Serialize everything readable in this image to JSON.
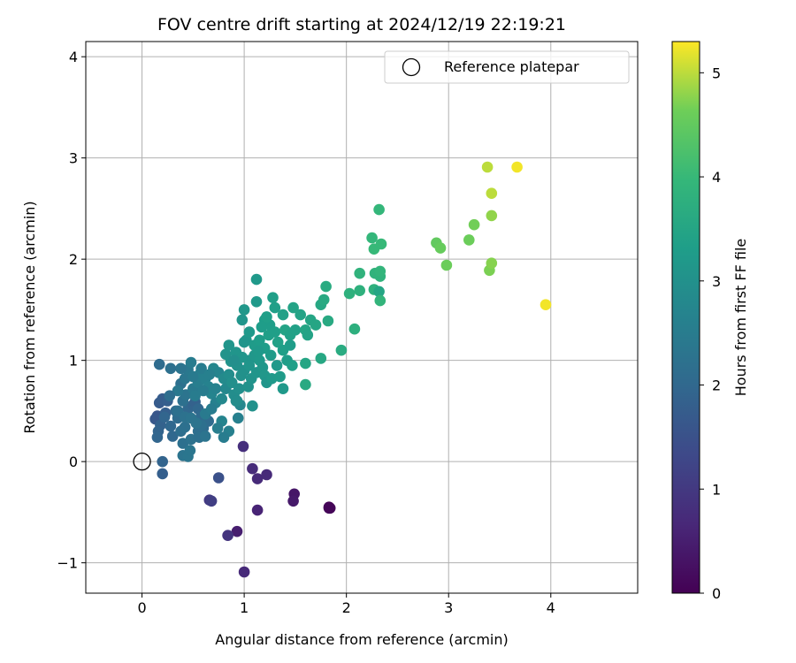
{
  "chart_data": {
    "type": "scatter",
    "title": "FOV centre drift starting at 2024/12/19 22:19:21",
    "xlabel": "Angular distance from reference (arcmin)",
    "ylabel": "Rotation from reference (arcmin)",
    "xlim": [
      -0.55,
      4.85
    ],
    "ylim": [
      -1.3,
      4.15
    ],
    "xticks": [
      "0",
      "1",
      "2",
      "3",
      "4"
    ],
    "yticks": [
      "−1",
      "0",
      "1",
      "2",
      "3",
      "4"
    ],
    "grid": true,
    "legend": {
      "position": "top-right",
      "entries": [
        "Reference platepar"
      ]
    },
    "colorbar": {
      "label": "Hours from first FF file",
      "range": [
        0,
        5.3
      ],
      "ticks": [
        "0",
        "1",
        "2",
        "3",
        "4",
        "5"
      ],
      "colormap": "viridis"
    },
    "reference_point": {
      "x": 0,
      "y": 0
    },
    "series": [
      {
        "columns": [
          "x",
          "y",
          "hours"
        ],
        "points": [
          [
            1.83,
            -0.45,
            0.02
          ],
          [
            1.84,
            -0.46,
            0.05
          ],
          [
            1.83,
            -0.46,
            0.08
          ],
          [
            1.49,
            -0.32,
            0.35
          ],
          [
            1.48,
            -0.39,
            0.4
          ],
          [
            0.93,
            -0.69,
            0.5
          ],
          [
            1.13,
            -0.48,
            0.6
          ],
          [
            1.0,
            -1.09,
            0.7
          ],
          [
            1.13,
            -0.17,
            0.7
          ],
          [
            1.22,
            -0.13,
            0.7
          ],
          [
            1.08,
            -0.07,
            0.75
          ],
          [
            0.99,
            0.15,
            0.8
          ],
          [
            0.84,
            -0.73,
            0.9
          ],
          [
            0.66,
            -0.38,
            1.0
          ],
          [
            0.68,
            -0.39,
            1.1
          ],
          [
            0.75,
            -0.16,
            1.5
          ],
          [
            0.2,
            -0.12,
            1.8
          ],
          [
            0.2,
            0.0,
            1.9
          ],
          [
            0.15,
            0.45,
            1.6
          ],
          [
            0.13,
            0.42,
            1.65
          ],
          [
            0.17,
            0.58,
            1.7
          ],
          [
            0.2,
            0.62,
            1.75
          ],
          [
            0.23,
            0.48,
            1.8
          ],
          [
            0.18,
            0.36,
            1.85
          ],
          [
            0.16,
            0.3,
            1.9
          ],
          [
            0.15,
            0.24,
            1.95
          ],
          [
            0.28,
            0.35,
            2.0
          ],
          [
            0.3,
            0.25,
            2.0
          ],
          [
            0.25,
            0.6,
            1.8
          ],
          [
            0.33,
            0.5,
            2.05
          ],
          [
            0.35,
            0.43,
            2.1
          ],
          [
            0.38,
            0.3,
            2.15
          ],
          [
            0.42,
            0.34,
            2.2
          ],
          [
            0.4,
            0.18,
            2.2
          ],
          [
            0.48,
            0.22,
            2.25
          ],
          [
            0.4,
            0.06,
            2.3
          ],
          [
            0.45,
            0.05,
            2.35
          ],
          [
            0.47,
            0.11,
            2.35
          ],
          [
            0.45,
            0.52,
            2.0
          ],
          [
            0.5,
            0.56,
            1.9
          ],
          [
            0.52,
            0.59,
            1.85
          ],
          [
            0.55,
            0.52,
            2.0
          ],
          [
            0.58,
            0.45,
            2.05
          ],
          [
            0.6,
            0.33,
            2.1
          ],
          [
            0.65,
            0.4,
            2.1
          ],
          [
            0.55,
            0.3,
            2.15
          ],
          [
            0.56,
            0.24,
            2.2
          ],
          [
            0.62,
            0.25,
            2.3
          ],
          [
            0.58,
            0.36,
            2.2
          ],
          [
            0.4,
            0.6,
            2.2
          ],
          [
            0.43,
            0.66,
            2.3
          ],
          [
            0.38,
            0.77,
            2.2
          ],
          [
            0.42,
            0.82,
            2.35
          ],
          [
            0.45,
            0.91,
            2.4
          ],
          [
            0.48,
            0.98,
            2.5
          ],
          [
            0.38,
            0.92,
            2.3
          ],
          [
            0.28,
            0.92,
            2.2
          ],
          [
            0.17,
            0.96,
            2.1
          ],
          [
            0.35,
            0.7,
            2.4
          ],
          [
            0.5,
            0.72,
            2.45
          ],
          [
            0.52,
            0.65,
            2.5
          ],
          [
            0.55,
            0.78,
            2.55
          ],
          [
            0.57,
            0.87,
            2.6
          ],
          [
            0.62,
            0.82,
            2.6
          ],
          [
            0.65,
            0.74,
            2.65
          ],
          [
            0.68,
            0.67,
            2.7
          ],
          [
            0.7,
            0.92,
            2.75
          ],
          [
            0.75,
            0.88,
            2.7
          ],
          [
            0.72,
            0.58,
            2.6
          ],
          [
            0.78,
            0.62,
            2.8
          ],
          [
            0.82,
            0.72,
            2.8
          ],
          [
            0.8,
            0.82,
            2.85
          ],
          [
            0.85,
            0.86,
            2.9
          ],
          [
            0.88,
            0.78,
            2.95
          ],
          [
            0.9,
            0.66,
            2.9
          ],
          [
            0.92,
            0.6,
            2.9
          ],
          [
            0.95,
            0.72,
            2.95
          ],
          [
            0.97,
            0.85,
            3.0
          ],
          [
            1.0,
            0.9,
            3.0
          ],
          [
            0.93,
            0.95,
            3.0
          ],
          [
            0.87,
            0.99,
            3.05
          ],
          [
            0.82,
            1.06,
            3.05
          ],
          [
            0.85,
            1.15,
            3.1
          ],
          [
            0.92,
            1.08,
            3.1
          ],
          [
            0.96,
            0.56,
            2.75
          ],
          [
            0.78,
            0.4,
            2.7
          ],
          [
            0.85,
            0.3,
            2.6
          ],
          [
            0.8,
            0.24,
            2.5
          ],
          [
            0.74,
            0.33,
            2.55
          ],
          [
            0.93,
            0.6,
            2.9
          ],
          [
            0.94,
            0.43,
            2.6
          ],
          [
            1.04,
            0.74,
            3.0
          ],
          [
            1.07,
            0.82,
            3.05
          ],
          [
            1.12,
            0.88,
            3.1
          ],
          [
            1.05,
            1.0,
            3.1
          ],
          [
            1.1,
            1.05,
            3.15
          ],
          [
            1.15,
            1.0,
            3.2
          ],
          [
            1.18,
            0.93,
            3.15
          ],
          [
            1.2,
            0.85,
            3.15
          ],
          [
            1.22,
            0.78,
            3.1
          ],
          [
            1.27,
            0.82,
            3.2
          ],
          [
            1.32,
            0.95,
            3.2
          ],
          [
            1.35,
            0.84,
            3.25
          ],
          [
            1.38,
            0.72,
            3.2
          ],
          [
            1.08,
            0.55,
            3.0
          ],
          [
            1.02,
            1.2,
            3.15
          ],
          [
            1.05,
            1.28,
            3.2
          ],
          [
            1.1,
            1.15,
            3.25
          ],
          [
            1.15,
            1.2,
            3.3
          ],
          [
            1.2,
            1.12,
            3.3
          ],
          [
            1.24,
            1.25,
            3.35
          ],
          [
            1.25,
            1.35,
            3.3
          ],
          [
            1.3,
            1.28,
            3.35
          ],
          [
            1.33,
            1.18,
            3.4
          ],
          [
            1.38,
            1.1,
            3.35
          ],
          [
            1.4,
            1.3,
            3.45
          ],
          [
            1.45,
            1.25,
            3.4
          ],
          [
            1.5,
            1.3,
            3.4
          ],
          [
            1.55,
            1.45,
            3.45
          ],
          [
            1.6,
            1.3,
            3.5
          ],
          [
            1.65,
            1.4,
            3.5
          ],
          [
            1.7,
            1.35,
            3.5
          ],
          [
            1.62,
            1.25,
            3.45
          ],
          [
            1.48,
            1.52,
            3.45
          ],
          [
            1.38,
            1.45,
            3.4
          ],
          [
            1.3,
            1.52,
            3.35
          ],
          [
            1.28,
            1.62,
            3.35
          ],
          [
            1.2,
            1.4,
            3.3
          ],
          [
            1.12,
            1.58,
            3.2
          ],
          [
            1.0,
            1.5,
            3.15
          ],
          [
            0.98,
            1.4,
            3.1
          ],
          [
            1.12,
            1.8,
            3.2
          ],
          [
            1.0,
            1.18,
            3.1
          ],
          [
            0.98,
            1.03,
            3.1
          ],
          [
            1.45,
            1.15,
            3.3
          ],
          [
            1.42,
            1.0,
            3.3
          ],
          [
            1.47,
            0.95,
            3.35
          ],
          [
            1.6,
            0.97,
            3.5
          ],
          [
            1.75,
            1.02,
            3.55
          ],
          [
            1.6,
            0.76,
            3.6
          ],
          [
            1.75,
            1.55,
            3.55
          ],
          [
            1.78,
            1.6,
            3.6
          ],
          [
            1.82,
            1.39,
            3.6
          ],
          [
            1.8,
            1.73,
            3.65
          ],
          [
            1.95,
            1.1,
            3.65
          ],
          [
            2.08,
            1.31,
            3.75
          ],
          [
            2.03,
            1.66,
            3.8
          ],
          [
            2.13,
            1.69,
            3.8
          ],
          [
            2.13,
            1.86,
            3.85
          ],
          [
            2.27,
            1.7,
            3.8
          ],
          [
            2.32,
            1.68,
            3.5
          ],
          [
            2.28,
            1.86,
            3.85
          ],
          [
            2.33,
            1.83,
            3.85
          ],
          [
            2.33,
            1.88,
            3.9
          ],
          [
            2.33,
            1.59,
            3.9
          ],
          [
            2.25,
            2.21,
            3.95
          ],
          [
            2.27,
            2.1,
            4.0
          ],
          [
            2.34,
            2.15,
            4.0
          ],
          [
            2.32,
            2.49,
            3.95
          ],
          [
            2.88,
            2.16,
            4.5
          ],
          [
            2.92,
            2.11,
            4.55
          ],
          [
            2.98,
            1.94,
            4.6
          ],
          [
            3.2,
            2.19,
            4.6
          ],
          [
            3.25,
            2.34,
            4.65
          ],
          [
            3.4,
            1.89,
            4.7
          ],
          [
            3.42,
            1.96,
            4.75
          ],
          [
            3.42,
            2.43,
            4.8
          ],
          [
            3.42,
            2.65,
            5.0
          ],
          [
            3.38,
            2.91,
            5.0
          ],
          [
            3.67,
            2.91,
            5.25
          ],
          [
            3.95,
            1.55,
            5.25
          ],
          [
            0.27,
            0.65,
            2.15
          ],
          [
            0.22,
            0.44,
            1.95
          ],
          [
            0.35,
            0.5,
            2.2
          ],
          [
            0.42,
            0.44,
            2.25
          ],
          [
            0.48,
            0.43,
            2.3
          ],
          [
            0.53,
            0.38,
            2.3
          ],
          [
            0.62,
            0.47,
            2.45
          ],
          [
            0.68,
            0.52,
            2.5
          ],
          [
            0.72,
            0.72,
            2.65
          ],
          [
            0.6,
            0.7,
            2.5
          ],
          [
            0.5,
            0.84,
            2.45
          ],
          [
            0.58,
            0.92,
            2.5
          ],
          [
            0.66,
            0.86,
            2.6
          ],
          [
            1.05,
            0.95,
            3.1
          ],
          [
            1.17,
            1.33,
            3.3
          ],
          [
            1.22,
            1.43,
            3.35
          ],
          [
            1.14,
            1.09,
            3.2
          ],
          [
            1.26,
            1.05,
            3.25
          ],
          [
            0.9,
            1.0,
            2.95
          ]
        ]
      }
    ]
  }
}
